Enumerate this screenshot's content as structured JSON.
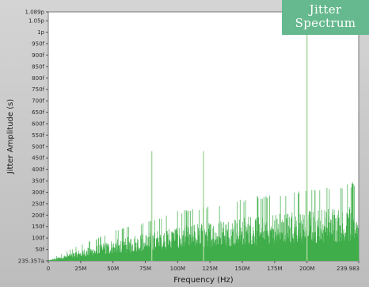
{
  "badge": {
    "line1": "Jitter",
    "line2": "Spectrum"
  },
  "colors": {
    "spectrum": "#3fae4a",
    "spur": "#a6d79a",
    "plot_bg": "#ffffff",
    "badge_bg": "#66b98e"
  },
  "chart_data": {
    "type": "bar",
    "title": "",
    "xlabel": "Frequency (Hz)",
    "ylabel": "Jitter Amplitude (s)",
    "x_range_mhz": [
      0,
      239.983
    ],
    "y_range_fs": [
      0,
      1089
    ],
    "x_ticks": [
      {
        "v": 0,
        "label": "0"
      },
      {
        "v": 25,
        "label": "25M"
      },
      {
        "v": 50,
        "label": "50M"
      },
      {
        "v": 75,
        "label": "75M"
      },
      {
        "v": 100,
        "label": "100M"
      },
      {
        "v": 125,
        "label": "125M"
      },
      {
        "v": 150,
        "label": "150M"
      },
      {
        "v": 175,
        "label": "175M"
      },
      {
        "v": 200,
        "label": "200M"
      },
      {
        "v": 239.983,
        "label": "239.983"
      }
    ],
    "y_ticks": [
      {
        "v": 1089,
        "label": "1.089p"
      },
      {
        "v": 1050,
        "label": "1.05p"
      },
      {
        "v": 1000,
        "label": "1p"
      },
      {
        "v": 950,
        "label": "950f"
      },
      {
        "v": 900,
        "label": "900f"
      },
      {
        "v": 850,
        "label": "850f"
      },
      {
        "v": 800,
        "label": "800f"
      },
      {
        "v": 750,
        "label": "750f"
      },
      {
        "v": 700,
        "label": "700f"
      },
      {
        "v": 650,
        "label": "650f"
      },
      {
        "v": 600,
        "label": "600f"
      },
      {
        "v": 550,
        "label": "550f"
      },
      {
        "v": 500,
        "label": "500f"
      },
      {
        "v": 450,
        "label": "450f"
      },
      {
        "v": 400,
        "label": "400f"
      },
      {
        "v": 350,
        "label": "350f"
      },
      {
        "v": 300,
        "label": "300f"
      },
      {
        "v": 250,
        "label": "250f"
      },
      {
        "v": 200,
        "label": "200f"
      },
      {
        "v": 150,
        "label": "150f"
      },
      {
        "v": 100,
        "label": "100f"
      },
      {
        "v": 50,
        "label": "50f"
      },
      {
        "v": 0,
        "label": "235.357a"
      }
    ],
    "spurs": [
      {
        "freq_mhz": 80,
        "amp_fs": 480
      },
      {
        "freq_mhz": 120,
        "amp_fs": 480
      },
      {
        "freq_mhz": 200,
        "amp_fs": 1075
      }
    ],
    "noise_envelope": [
      {
        "freq_mhz": 0,
        "amp_fs": 2
      },
      {
        "freq_mhz": 20,
        "amp_fs": 40
      },
      {
        "freq_mhz": 50,
        "amp_fs": 90
      },
      {
        "freq_mhz": 100,
        "amp_fs": 150
      },
      {
        "freq_mhz": 150,
        "amp_fs": 190
      },
      {
        "freq_mhz": 200,
        "amp_fs": 220
      },
      {
        "freq_mhz": 239.983,
        "amp_fs": 240
      }
    ],
    "grid": false
  }
}
